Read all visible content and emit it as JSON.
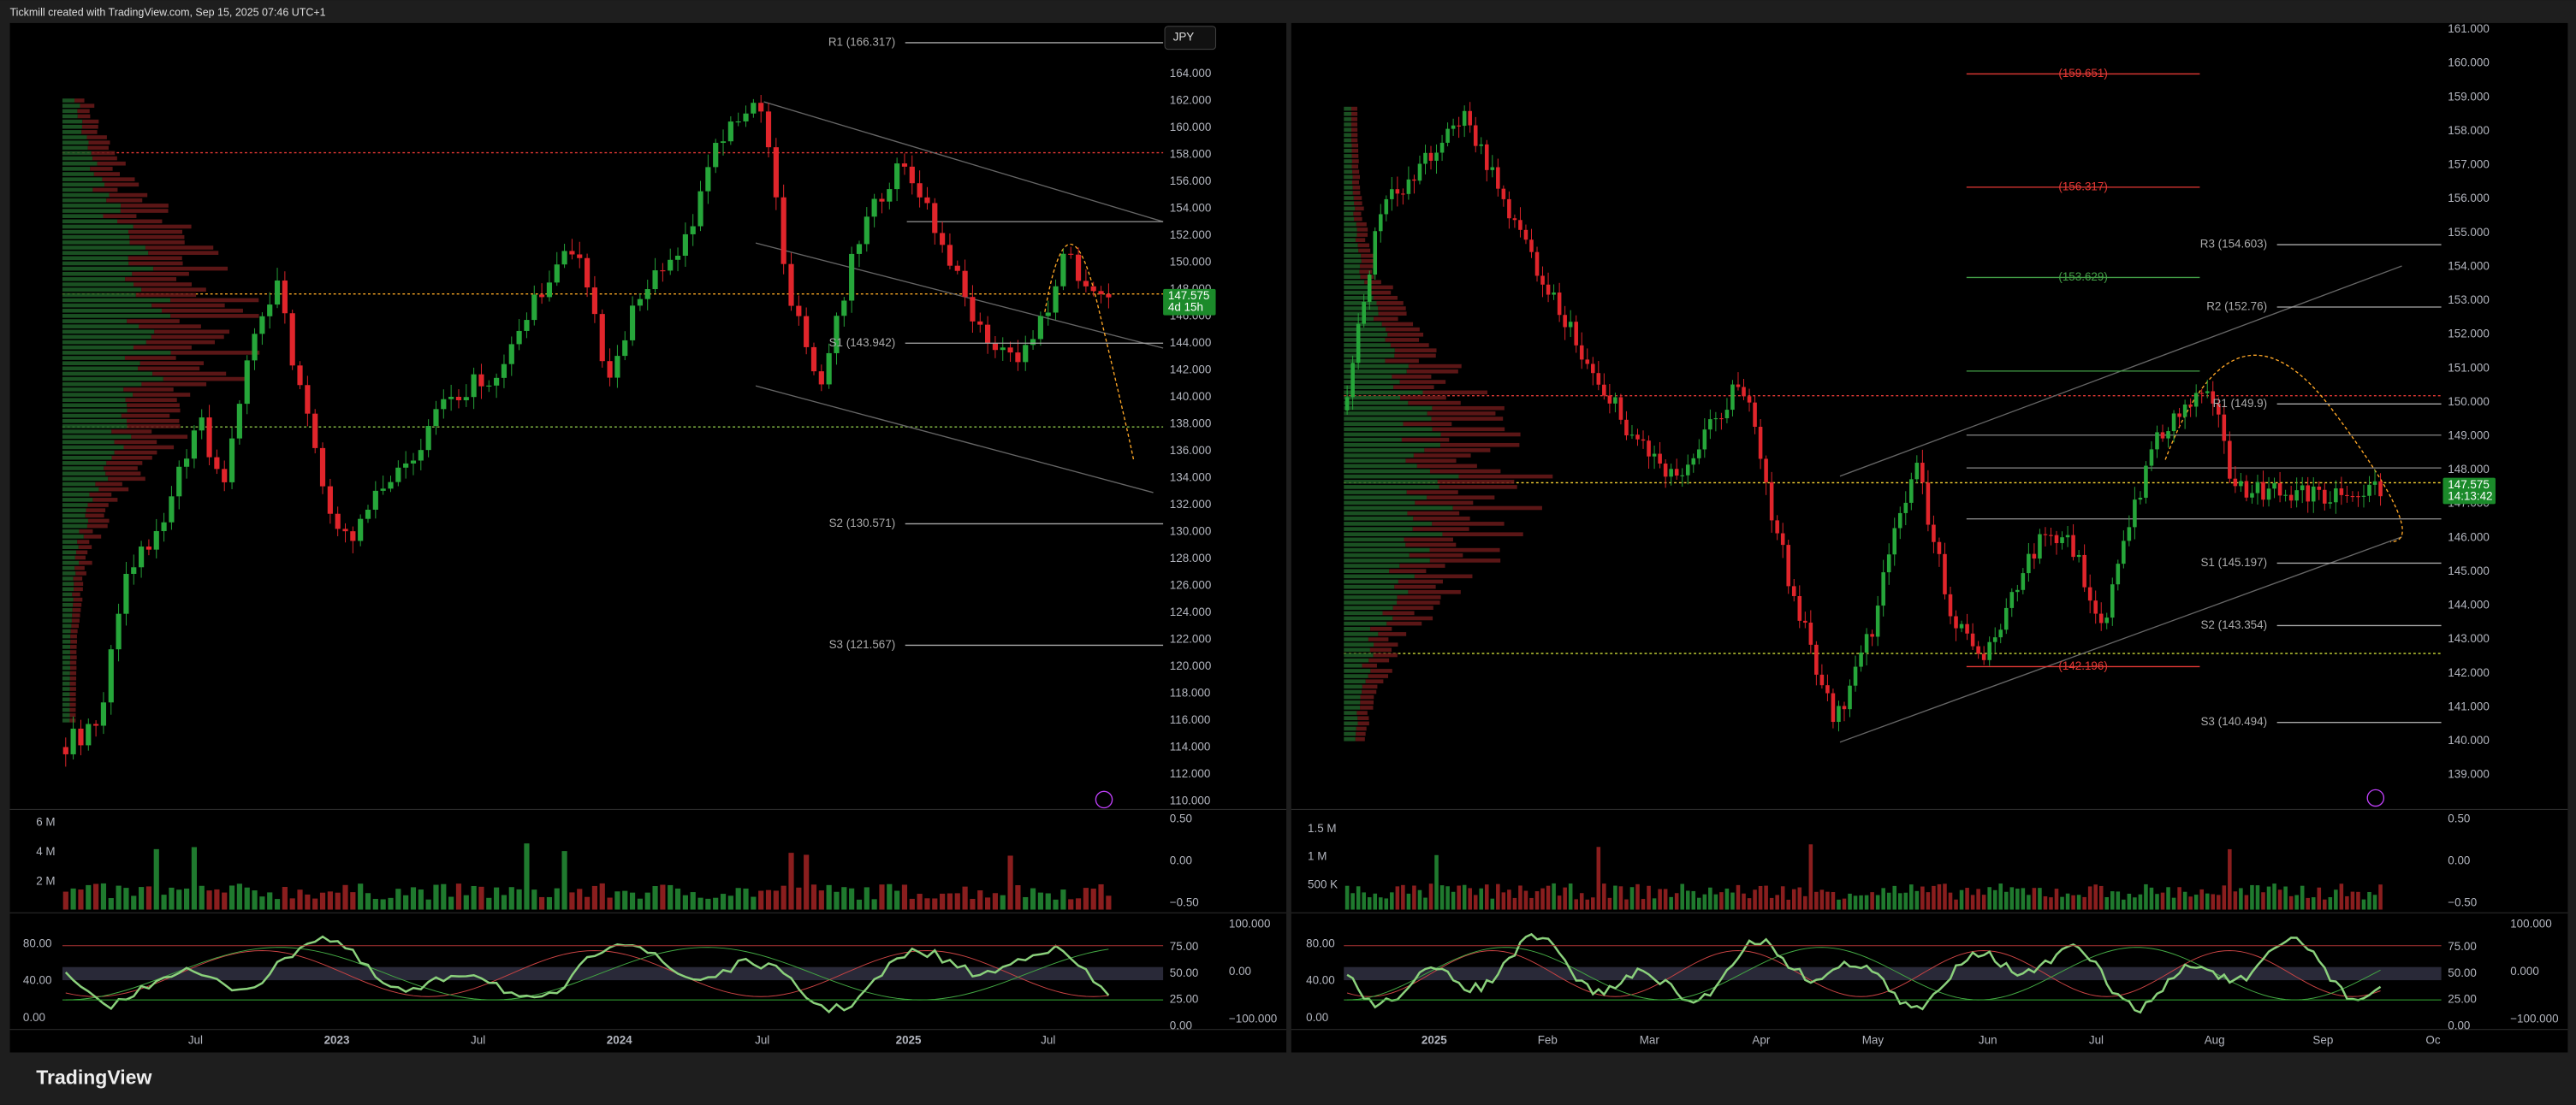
{
  "header": {
    "title": "Tickmill created with TradingView.com, Sep 15, 2025 07:46 UTC+1"
  },
  "footer": {
    "brand": "TradingView"
  },
  "panels": [
    {
      "currency": "JPY",
      "price_axis": [
        "164.000",
        "162.000",
        "160.000",
        "158.000",
        "156.000",
        "154.000",
        "152.000",
        "150.000",
        "148.000",
        "146.000",
        "144.000",
        "142.000",
        "140.000",
        "138.000",
        "136.000",
        "134.000",
        "132.000",
        "130.000",
        "128.000",
        "126.000",
        "124.000",
        "122.000",
        "120.000",
        "118.000",
        "116.000",
        "114.000",
        "112.000",
        "110.000"
      ],
      "levels": [
        "R1 (166.317)",
        "S1 (143.942)",
        "S2 (130.571)",
        "S3 (121.567)"
      ],
      "last_price": "147.575",
      "countdown": "4d 15h",
      "volume_axis": [
        "6 M",
        "4 M",
        "2 M"
      ],
      "volume_right_axis": [
        "0.50",
        "0.00",
        "−0.50"
      ],
      "osc_axis": [
        "80.00",
        "40.00",
        "0.00"
      ],
      "osc_right_axis": [
        "75.00",
        "50.00",
        "25.00",
        "0.00"
      ],
      "osc_far_axis": [
        "100.000",
        "0.00",
        "−100.000"
      ],
      "time_axis": [
        "Jul",
        "2023",
        "Jul",
        "2024",
        "Jul",
        "2025",
        "Jul"
      ]
    },
    {
      "price_axis": [
        "161.000",
        "160.000",
        "159.000",
        "158.000",
        "157.000",
        "156.000",
        "155.000",
        "154.000",
        "153.000",
        "152.000",
        "151.000",
        "150.000",
        "149.000",
        "148.000",
        "147.000",
        "146.000",
        "145.000",
        "144.000",
        "143.000",
        "142.000",
        "141.000",
        "140.000",
        "139.000"
      ],
      "levels": [
        "(159.651)",
        "(156.317)",
        "R3 (154.603)",
        "(153.629)",
        "R2 (152.76)",
        "R1 (149.9)",
        "S1 (145.197)",
        "S2 (143.354)",
        "(142.196)",
        "S3 (140.494)"
      ],
      "last_price": "147.575",
      "countdown": "14:13:42",
      "volume_axis": [
        "1.5 M",
        "1 M",
        "500 K"
      ],
      "volume_right_axis": [
        "0.50",
        "0.00",
        "−0.50"
      ],
      "osc_axis": [
        "80.00",
        "40.00",
        "0.00"
      ],
      "osc_right_axis": [
        "75.00",
        "50.00",
        "25.00",
        "0.00"
      ],
      "osc_far_axis": [
        "100.000",
        "0.000",
        "−100.000"
      ],
      "time_axis": [
        "2025",
        "Feb",
        "Mar",
        "Apr",
        "May",
        "Jun",
        "Jul",
        "Aug",
        "Sep",
        "Oc"
      ]
    }
  ]
}
